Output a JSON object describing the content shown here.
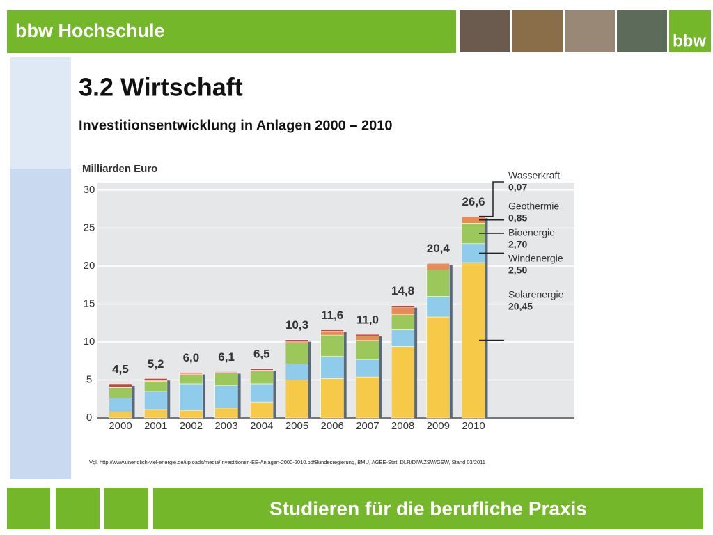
{
  "header": {
    "brand": "bbw Hochschule",
    "logo": "bbw"
  },
  "title": "3.2 Wirtschaft",
  "subtitle": "Investitionsentwicklung in Anlagen 2000 – 2010",
  "source": "Vgl. http://www.unendlich-viel-energie.de/uploads/media/Investitionen-EE-Anlagen-2000-2010.pdfBundesregierung, BMU, AGEE-Stat, DLR/DIW/ZSW/GSW, Stand 03/2011",
  "footer": "Studieren für die berufliche Praxis",
  "chart_data": {
    "type": "stacked-bar",
    "y_label": "Milliarden Euro",
    "categories": [
      "2000",
      "2001",
      "2002",
      "2003",
      "2004",
      "2005",
      "2006",
      "2007",
      "2008",
      "2009",
      "2010"
    ],
    "total_labels": [
      "4,5",
      "5,2",
      "6,0",
      "6,1",
      "6,5",
      "10,3",
      "11,6",
      "11,0",
      "14,8",
      "20,4",
      "26,6"
    ],
    "series": [
      {
        "name": "Solarenergie",
        "color": "#f7c948",
        "legend_value": "20,45",
        "values": [
          0.8,
          1.1,
          1.0,
          1.3,
          2.1,
          5.0,
          5.2,
          5.4,
          9.4,
          13.3,
          20.45
        ]
      },
      {
        "name": "Windenergie",
        "color": "#8fcbea",
        "legend_value": "2,50",
        "values": [
          1.8,
          2.4,
          3.5,
          3.0,
          2.4,
          2.1,
          2.9,
          2.3,
          2.2,
          2.7,
          2.5
        ]
      },
      {
        "name": "Bioenergie",
        "color": "#9cc75a",
        "legend_value": "2,70",
        "values": [
          1.4,
          1.3,
          1.2,
          1.6,
          1.7,
          2.8,
          2.8,
          2.5,
          2.0,
          3.5,
          2.7
        ]
      },
      {
        "name": "Geothermie",
        "color": "#ea8a55",
        "legend_value": "0,85",
        "values": [
          0.1,
          0.1,
          0.1,
          0.1,
          0.1,
          0.2,
          0.5,
          0.6,
          1.0,
          0.8,
          0.85
        ]
      },
      {
        "name": "Wasserkraft",
        "color": "#c8453c",
        "legend_value": "0,07",
        "values": [
          0.4,
          0.3,
          0.2,
          0.1,
          0.2,
          0.2,
          0.2,
          0.2,
          0.2,
          0.1,
          0.07
        ]
      }
    ],
    "ylim": [
      0,
      31
    ],
    "yticks": [
      0,
      5,
      10,
      15,
      20,
      25,
      30
    ],
    "grid": true
  }
}
